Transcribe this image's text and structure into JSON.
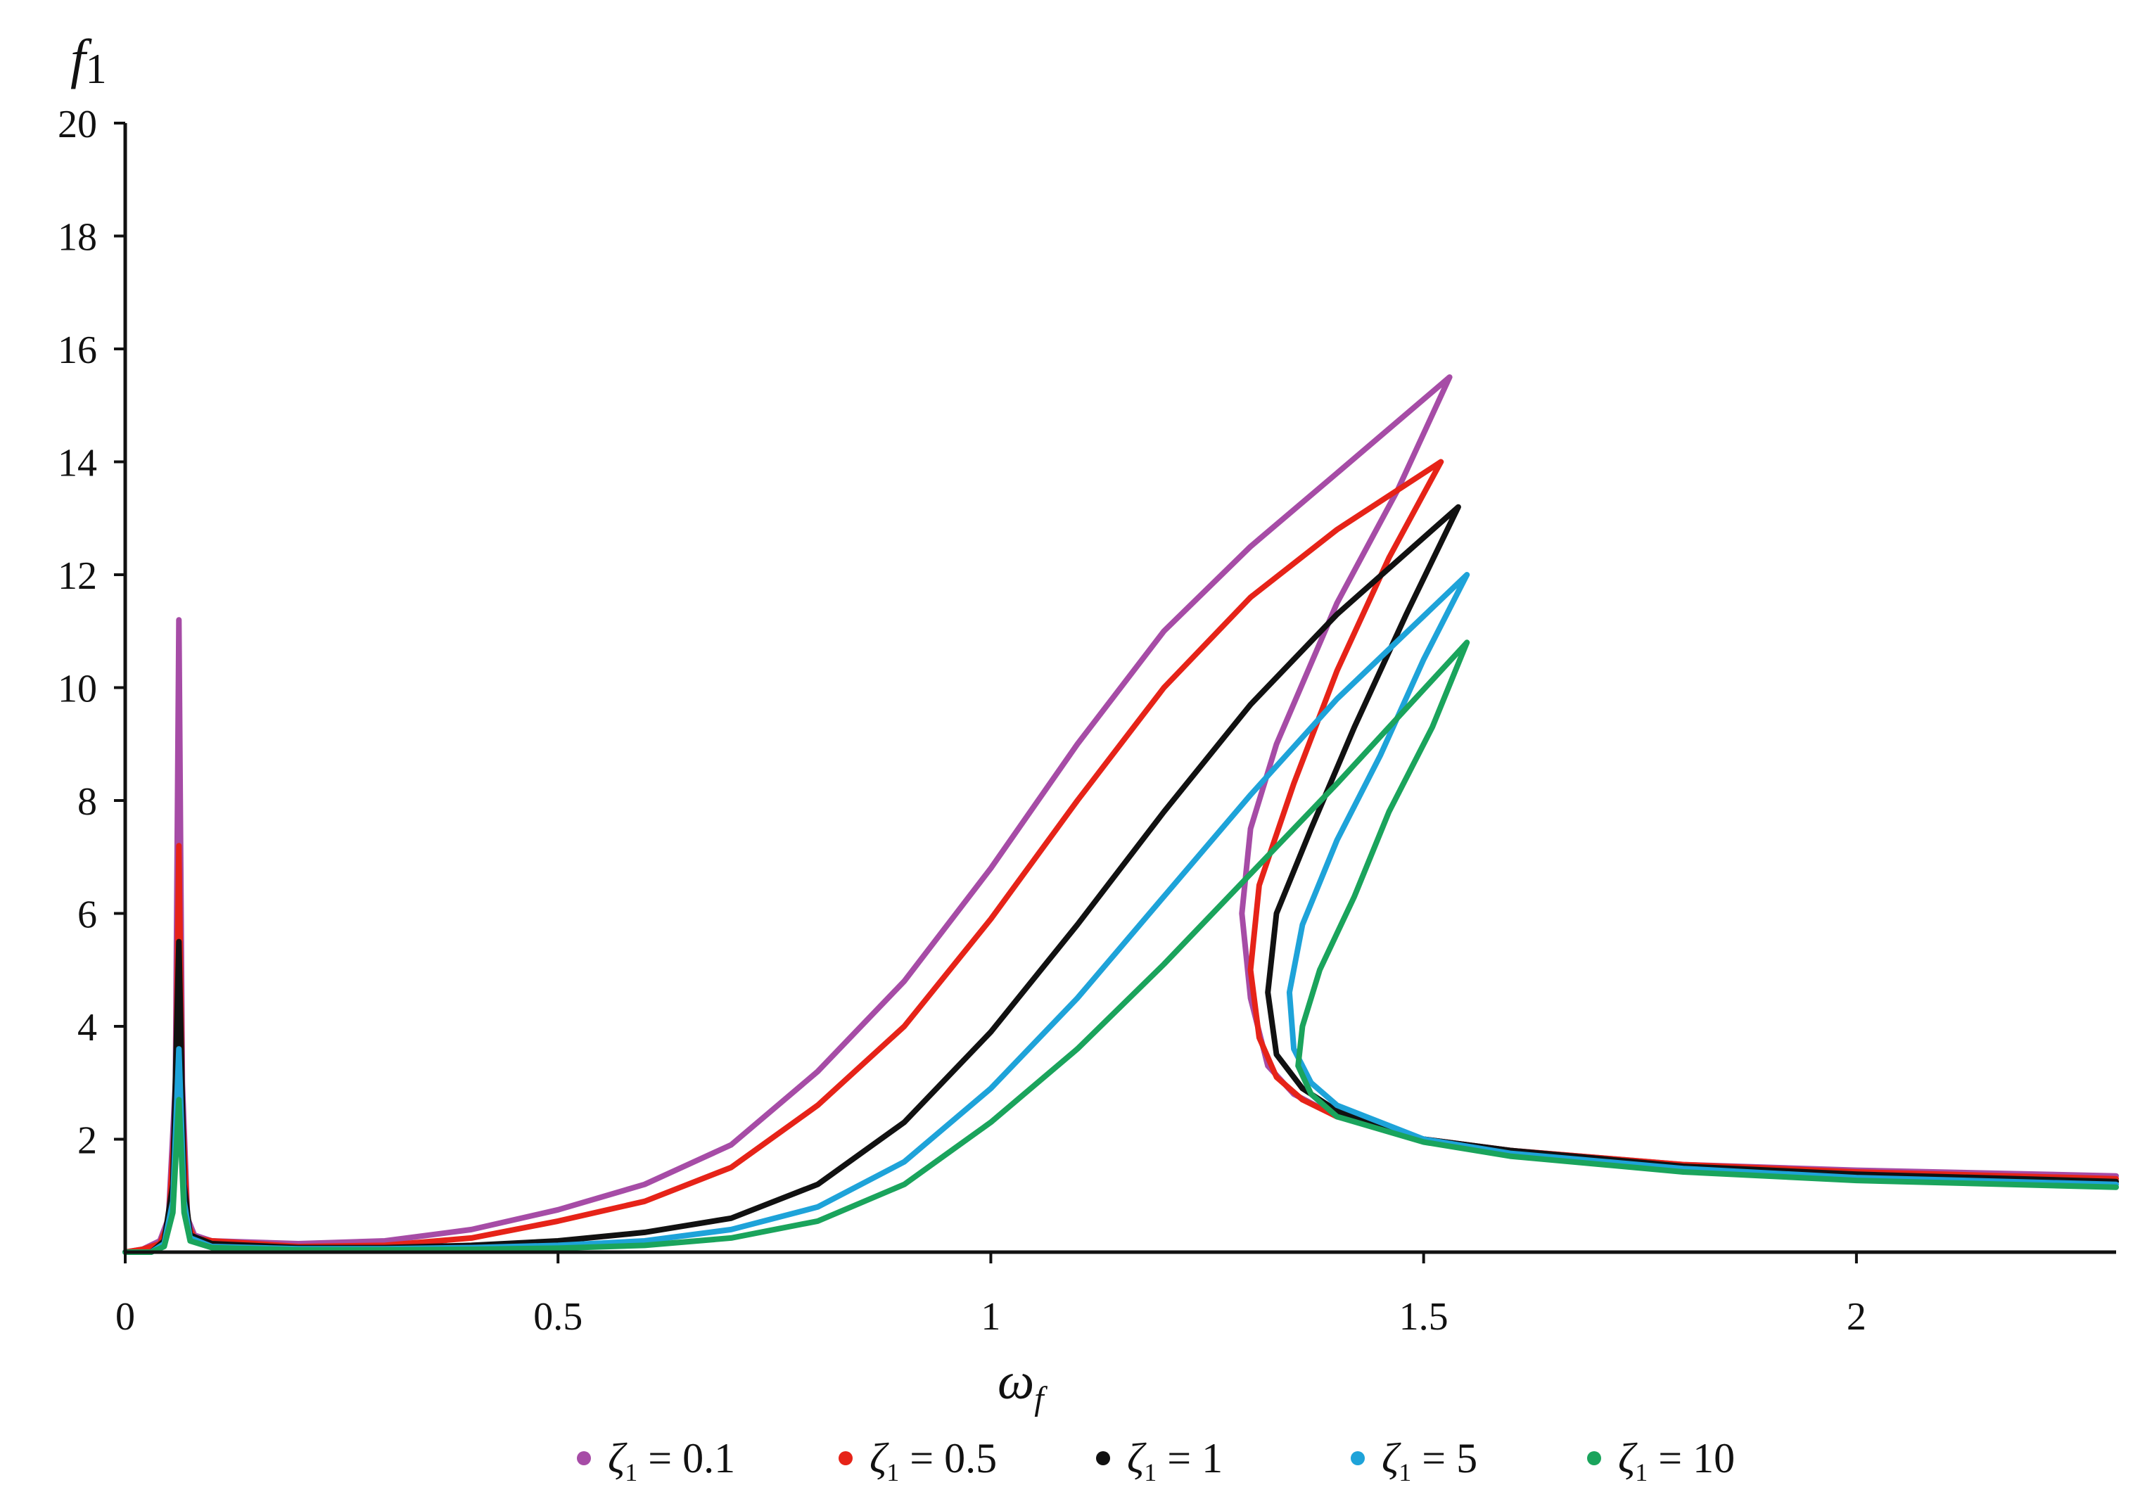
{
  "chart_data": {
    "type": "line",
    "title": "",
    "ylabel": {
      "main": "f",
      "sub": "1"
    },
    "xlabel": {
      "main": "ω",
      "sub": "f"
    },
    "xlim": [
      0,
      2.3
    ],
    "ylim": [
      0,
      20
    ],
    "x_ticks": [
      {
        "value": 0,
        "label": "0"
      },
      {
        "value": 0.5,
        "label": "0.5"
      },
      {
        "value": 1,
        "label": "1"
      },
      {
        "value": 1.5,
        "label": "1.5"
      },
      {
        "value": 2,
        "label": "2"
      }
    ],
    "y_ticks": [
      {
        "value": 2,
        "label": "2"
      },
      {
        "value": 4,
        "label": "4"
      },
      {
        "value": 6,
        "label": "6"
      },
      {
        "value": 8,
        "label": "8"
      },
      {
        "value": 10,
        "label": "10"
      },
      {
        "value": 12,
        "label": "12"
      },
      {
        "value": 14,
        "label": "14"
      },
      {
        "value": 16,
        "label": "16"
      },
      {
        "value": 18,
        "label": "18"
      },
      {
        "value": 20,
        "label": "20"
      }
    ],
    "grid": false,
    "legend_position": "bottom",
    "series": [
      {
        "legend_symbol": "ζ",
        "legend_sub": "1",
        "legend_value": " = 0.1",
        "color": "#a64ca6",
        "points": [
          [
            0,
            0
          ],
          [
            0.02,
            0.05
          ],
          [
            0.04,
            0.2
          ],
          [
            0.05,
            0.6
          ],
          [
            0.058,
            3
          ],
          [
            0.062,
            11.2
          ],
          [
            0.066,
            3
          ],
          [
            0.072,
            0.6
          ],
          [
            0.08,
            0.3
          ],
          [
            0.1,
            0.2
          ],
          [
            0.2,
            0.15
          ],
          [
            0.3,
            0.2
          ],
          [
            0.4,
            0.4
          ],
          [
            0.5,
            0.75
          ],
          [
            0.6,
            1.2
          ],
          [
            0.7,
            1.9
          ],
          [
            0.8,
            3.2
          ],
          [
            0.9,
            4.8
          ],
          [
            1.0,
            6.8
          ],
          [
            1.1,
            9.0
          ],
          [
            1.2,
            11.0
          ],
          [
            1.3,
            12.5
          ],
          [
            1.4,
            13.8
          ],
          [
            1.53,
            15.5
          ],
          [
            1.47,
            13.5
          ],
          [
            1.4,
            11.5
          ],
          [
            1.33,
            9.0
          ],
          [
            1.3,
            7.5
          ],
          [
            1.29,
            6.0
          ],
          [
            1.3,
            4.5
          ],
          [
            1.32,
            3.3
          ],
          [
            1.35,
            2.8
          ],
          [
            1.4,
            2.4
          ],
          [
            1.5,
            2.0
          ],
          [
            1.6,
            1.8
          ],
          [
            1.8,
            1.55
          ],
          [
            2.0,
            1.45
          ],
          [
            2.3,
            1.35
          ]
        ]
      },
      {
        "legend_symbol": "ζ",
        "legend_sub": "1",
        "legend_value": " = 0.5",
        "color": "#e62318",
        "points": [
          [
            0,
            0
          ],
          [
            0.02,
            0.05
          ],
          [
            0.04,
            0.15
          ],
          [
            0.05,
            0.5
          ],
          [
            0.058,
            2.5
          ],
          [
            0.062,
            7.2
          ],
          [
            0.066,
            2.5
          ],
          [
            0.072,
            0.5
          ],
          [
            0.08,
            0.25
          ],
          [
            0.1,
            0.2
          ],
          [
            0.2,
            0.1
          ],
          [
            0.3,
            0.12
          ],
          [
            0.4,
            0.25
          ],
          [
            0.5,
            0.55
          ],
          [
            0.6,
            0.9
          ],
          [
            0.7,
            1.5
          ],
          [
            0.8,
            2.6
          ],
          [
            0.9,
            4.0
          ],
          [
            1.0,
            5.9
          ],
          [
            1.1,
            8.0
          ],
          [
            1.2,
            10.0
          ],
          [
            1.3,
            11.6
          ],
          [
            1.4,
            12.8
          ],
          [
            1.52,
            14.0
          ],
          [
            1.46,
            12.3
          ],
          [
            1.4,
            10.3
          ],
          [
            1.35,
            8.3
          ],
          [
            1.31,
            6.5
          ],
          [
            1.3,
            5.0
          ],
          [
            1.31,
            3.8
          ],
          [
            1.33,
            3.1
          ],
          [
            1.36,
            2.7
          ],
          [
            1.4,
            2.4
          ],
          [
            1.5,
            2.0
          ],
          [
            1.6,
            1.8
          ],
          [
            1.8,
            1.55
          ],
          [
            2.0,
            1.42
          ],
          [
            2.3,
            1.3
          ]
        ]
      },
      {
        "legend_symbol": "ζ",
        "legend_sub": "1",
        "legend_value": " = 1",
        "color": "#111111",
        "points": [
          [
            0,
            0
          ],
          [
            0.03,
            0
          ],
          [
            0.045,
            0.2
          ],
          [
            0.055,
            1.2
          ],
          [
            0.062,
            5.5
          ],
          [
            0.068,
            1.2
          ],
          [
            0.075,
            0.3
          ],
          [
            0.1,
            0.15
          ],
          [
            0.2,
            0.08
          ],
          [
            0.3,
            0.08
          ],
          [
            0.4,
            0.12
          ],
          [
            0.5,
            0.2
          ],
          [
            0.6,
            0.35
          ],
          [
            0.7,
            0.6
          ],
          [
            0.8,
            1.2
          ],
          [
            0.9,
            2.3
          ],
          [
            1.0,
            3.9
          ],
          [
            1.1,
            5.8
          ],
          [
            1.2,
            7.8
          ],
          [
            1.3,
            9.7
          ],
          [
            1.4,
            11.3
          ],
          [
            1.54,
            13.2
          ],
          [
            1.48,
            11.3
          ],
          [
            1.42,
            9.3
          ],
          [
            1.37,
            7.5
          ],
          [
            1.33,
            6.0
          ],
          [
            1.32,
            4.6
          ],
          [
            1.33,
            3.5
          ],
          [
            1.36,
            2.9
          ],
          [
            1.4,
            2.5
          ],
          [
            1.5,
            2.0
          ],
          [
            1.6,
            1.8
          ],
          [
            1.8,
            1.52
          ],
          [
            2.0,
            1.38
          ],
          [
            2.3,
            1.25
          ]
        ]
      },
      {
        "legend_symbol": "ζ",
        "legend_sub": "1",
        "legend_value": " = 5",
        "color": "#1ea3d9",
        "points": [
          [
            0,
            0
          ],
          [
            0.03,
            0
          ],
          [
            0.045,
            0.15
          ],
          [
            0.055,
            0.9
          ],
          [
            0.062,
            3.6
          ],
          [
            0.068,
            0.9
          ],
          [
            0.075,
            0.25
          ],
          [
            0.1,
            0.1
          ],
          [
            0.2,
            0.06
          ],
          [
            0.3,
            0.06
          ],
          [
            0.4,
            0.08
          ],
          [
            0.5,
            0.12
          ],
          [
            0.6,
            0.2
          ],
          [
            0.7,
            0.4
          ],
          [
            0.8,
            0.8
          ],
          [
            0.9,
            1.6
          ],
          [
            1.0,
            2.9
          ],
          [
            1.1,
            4.5
          ],
          [
            1.2,
            6.3
          ],
          [
            1.3,
            8.1
          ],
          [
            1.4,
            9.8
          ],
          [
            1.55,
            12.0
          ],
          [
            1.5,
            10.5
          ],
          [
            1.45,
            8.8
          ],
          [
            1.4,
            7.3
          ],
          [
            1.36,
            5.8
          ],
          [
            1.345,
            4.6
          ],
          [
            1.35,
            3.6
          ],
          [
            1.37,
            3.0
          ],
          [
            1.4,
            2.6
          ],
          [
            1.5,
            2.0
          ],
          [
            1.6,
            1.75
          ],
          [
            1.8,
            1.48
          ],
          [
            2.0,
            1.32
          ],
          [
            2.3,
            1.2
          ]
        ]
      },
      {
        "legend_symbol": "ζ",
        "legend_sub": "1",
        "legend_value": " = 10",
        "color": "#1aa45c",
        "points": [
          [
            0,
            0
          ],
          [
            0.03,
            0
          ],
          [
            0.045,
            0.1
          ],
          [
            0.055,
            0.7
          ],
          [
            0.062,
            2.7
          ],
          [
            0.068,
            0.7
          ],
          [
            0.075,
            0.2
          ],
          [
            0.1,
            0.08
          ],
          [
            0.2,
            0.04
          ],
          [
            0.3,
            0.04
          ],
          [
            0.4,
            0.05
          ],
          [
            0.5,
            0.07
          ],
          [
            0.6,
            0.12
          ],
          [
            0.7,
            0.25
          ],
          [
            0.8,
            0.55
          ],
          [
            0.9,
            1.2
          ],
          [
            1.0,
            2.3
          ],
          [
            1.1,
            3.6
          ],
          [
            1.2,
            5.1
          ],
          [
            1.3,
            6.7
          ],
          [
            1.4,
            8.3
          ],
          [
            1.55,
            10.8
          ],
          [
            1.51,
            9.3
          ],
          [
            1.46,
            7.8
          ],
          [
            1.42,
            6.3
          ],
          [
            1.38,
            5.0
          ],
          [
            1.36,
            4.0
          ],
          [
            1.355,
            3.3
          ],
          [
            1.37,
            2.8
          ],
          [
            1.4,
            2.4
          ],
          [
            1.5,
            1.95
          ],
          [
            1.6,
            1.7
          ],
          [
            1.8,
            1.42
          ],
          [
            2.0,
            1.27
          ],
          [
            2.3,
            1.15
          ]
        ]
      }
    ]
  }
}
